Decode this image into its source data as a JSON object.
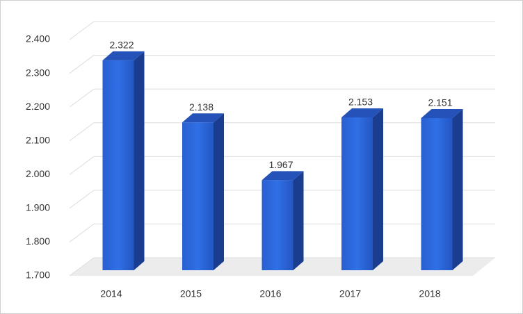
{
  "chart_data": {
    "type": "bar3d",
    "categories": [
      "2014",
      "2015",
      "2016",
      "2017",
      "2018"
    ],
    "values": [
      2.322,
      2.138,
      1.967,
      2.153,
      2.151
    ],
    "color": "#2a62d8",
    "ylim": [
      1.7,
      2.4
    ],
    "yticks": [
      {
        "value": 1.7,
        "label": "1.700"
      },
      {
        "value": 1.8,
        "label": "1.800"
      },
      {
        "value": 1.9,
        "label": "1.900"
      },
      {
        "value": 2.0,
        "label": "2.000"
      },
      {
        "value": 2.1,
        "label": "2.100"
      },
      {
        "value": 2.2,
        "label": "2.200"
      },
      {
        "value": 2.3,
        "label": "2.300"
      },
      {
        "value": 2.4,
        "label": "2.400"
      }
    ],
    "grid": true
  }
}
